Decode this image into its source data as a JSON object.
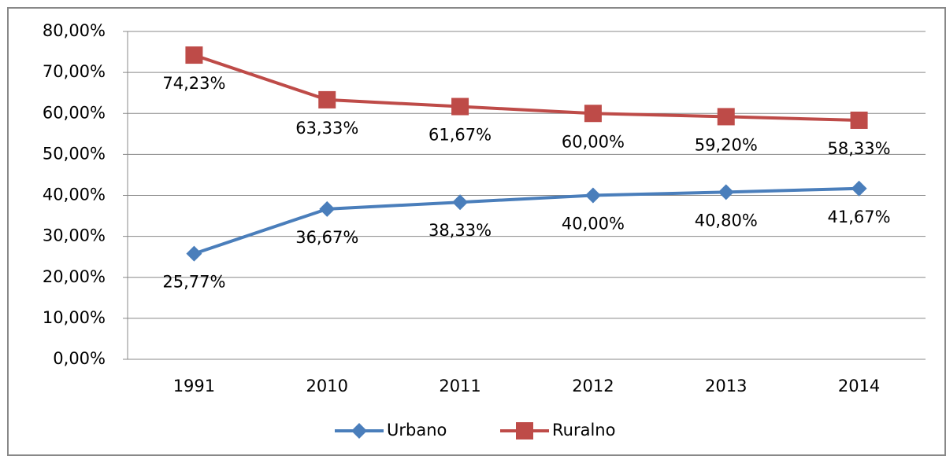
{
  "chart_data": {
    "type": "line",
    "categories": [
      "1991",
      "2010",
      "2011",
      "2012",
      "2013",
      "2014"
    ],
    "series": [
      {
        "name": "Urbano",
        "color": "#4a7ebb",
        "marker": "diamond",
        "values": [
          25.77,
          36.67,
          38.33,
          40.0,
          40.8,
          41.67
        ],
        "value_labels": [
          "25,77%",
          "36,67%",
          "38,33%",
          "40,00%",
          "40,80%",
          "41,67%"
        ]
      },
      {
        "name": "Ruralno",
        "color": "#be4b48",
        "marker": "square",
        "values": [
          74.23,
          63.33,
          61.67,
          60.0,
          59.2,
          58.33
        ],
        "value_labels": [
          "74,23%",
          "63,33%",
          "61,67%",
          "60,00%",
          "59,20%",
          "58,33%"
        ]
      }
    ],
    "ylim": [
      0,
      80
    ],
    "yticks": [
      {
        "value": 0,
        "label": "0,00%"
      },
      {
        "value": 10,
        "label": "10,00%"
      },
      {
        "value": 20,
        "label": "20,00%"
      },
      {
        "value": 30,
        "label": "30,00%"
      },
      {
        "value": 40,
        "label": "40,00%"
      },
      {
        "value": 50,
        "label": "50,00%"
      },
      {
        "value": 60,
        "label": "60,00%"
      },
      {
        "value": 70,
        "label": "70,00%"
      },
      {
        "value": 80,
        "label": "80,00%"
      }
    ],
    "grid": true,
    "legend": "bottom"
  }
}
